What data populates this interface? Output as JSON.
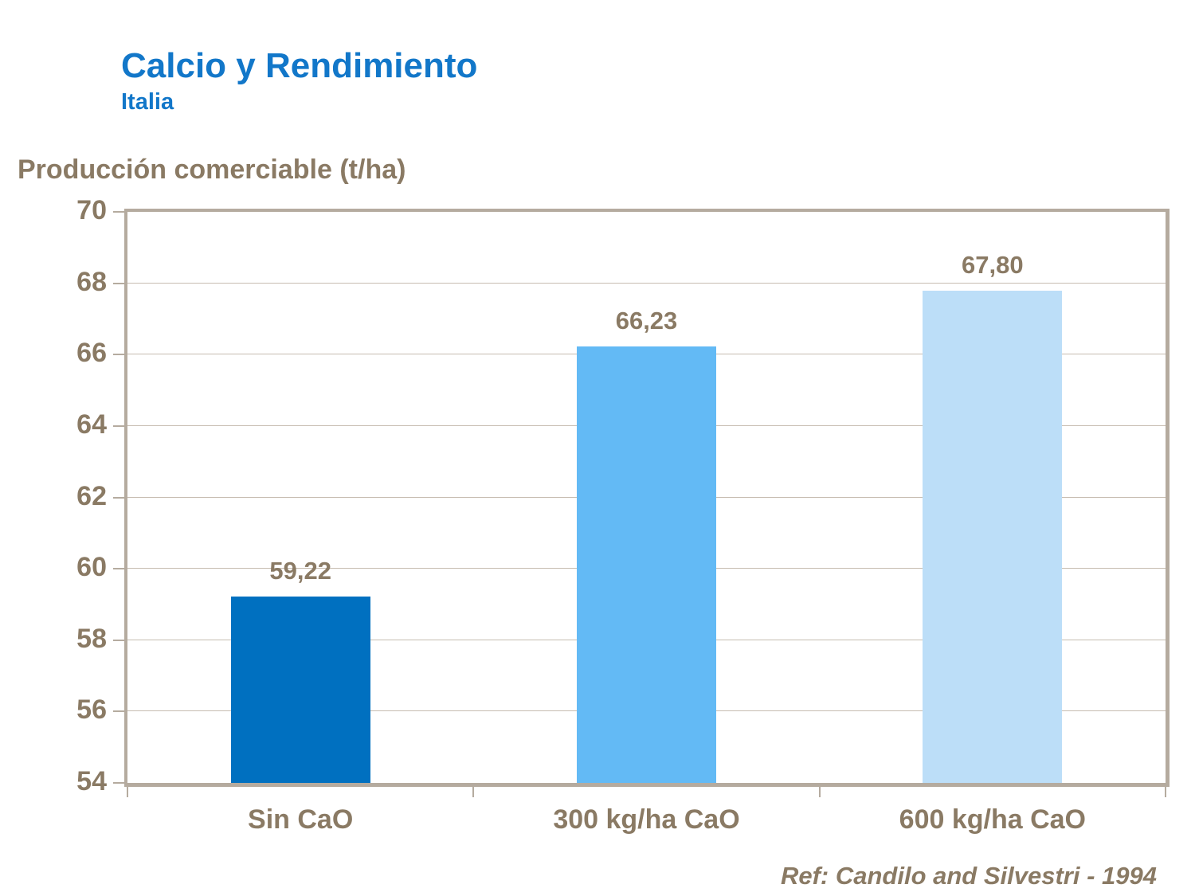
{
  "header": {
    "title": "Calcio y Rendimiento",
    "subtitle": "Italia"
  },
  "footer": {
    "reference": "Ref: Candilo and Silvestri - 1994"
  },
  "colors": {
    "title_blue": "#1277C9",
    "text_brown": "#8A7A64",
    "axis_tan": "#B5AB9F",
    "gridline": "#C6BCB0",
    "bar_colors": [
      "#0070C0",
      "#63BAF5",
      "#BCDEF8"
    ]
  },
  "chart_data": {
    "type": "bar",
    "title": "Calcio y Rendimiento",
    "subtitle": "Italia",
    "ylabel": "Producción comerciable (t/ha)",
    "xlabel": "",
    "categories": [
      "Sin CaO",
      "300 kg/ha CaO",
      "600 kg/ha CaO"
    ],
    "values": [
      59.22,
      66.23,
      67.8
    ],
    "value_labels": [
      "59,22",
      "66,23",
      "67,80"
    ],
    "ylim": [
      54,
      70
    ],
    "ytick_step": 2,
    "ytick_labels": [
      "54",
      "56",
      "58",
      "60",
      "62",
      "64",
      "66",
      "68",
      "70"
    ],
    "grid": true,
    "legend_position": "none"
  }
}
